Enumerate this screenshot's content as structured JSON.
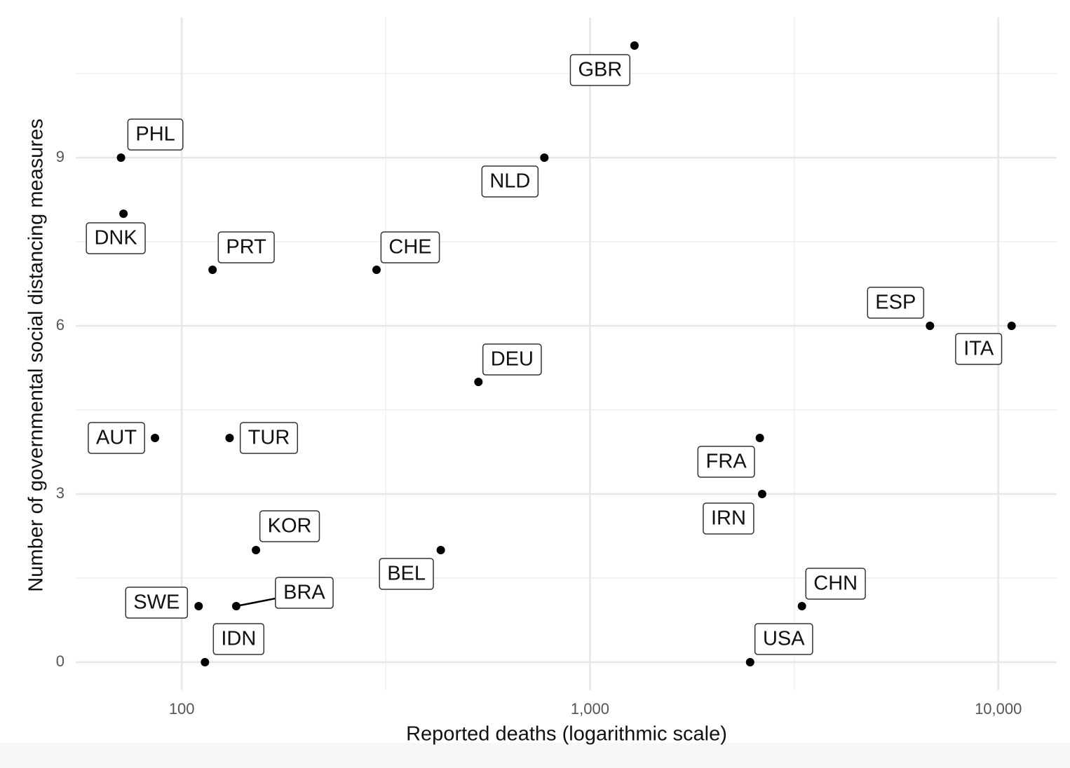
{
  "chart_data": {
    "type": "scatter",
    "x_label": "Reported deaths (logarithmic scale)",
    "y_label": "Number of governmental social distancing measures",
    "labels": [
      "PHL",
      "DNK",
      "PRT",
      "CHE",
      "GBR",
      "NLD",
      "ESP",
      "ITA",
      "DEU",
      "AUT",
      "TUR",
      "FRA",
      "IRN",
      "KOR",
      "BEL",
      "SWE",
      "BRA",
      "CHN",
      "IDN",
      "USA"
    ],
    "x": [
      71,
      72,
      119,
      300,
      1285,
      773,
      6803,
      10779,
      533,
      86,
      131,
      2606,
      2640,
      152,
      431,
      110,
      136,
      3304,
      114,
      2467
    ],
    "values": [
      9,
      8,
      7,
      7,
      11,
      9,
      6,
      6,
      5,
      4,
      4,
      4,
      3,
      2,
      2,
      1,
      1,
      1,
      0,
      0
    ],
    "color": "#000000",
    "x_log": true,
    "xlim": [
      55,
      13900
    ],
    "ylim": [
      -0.5,
      11.5
    ],
    "xticks": [
      100,
      {
        "value": 1000,
        "label": "1,000"
      },
      {
        "value": 10000,
        "label": "10,000"
      }
    ],
    "yticks": [
      0,
      3,
      6,
      9
    ],
    "grid": true
  }
}
